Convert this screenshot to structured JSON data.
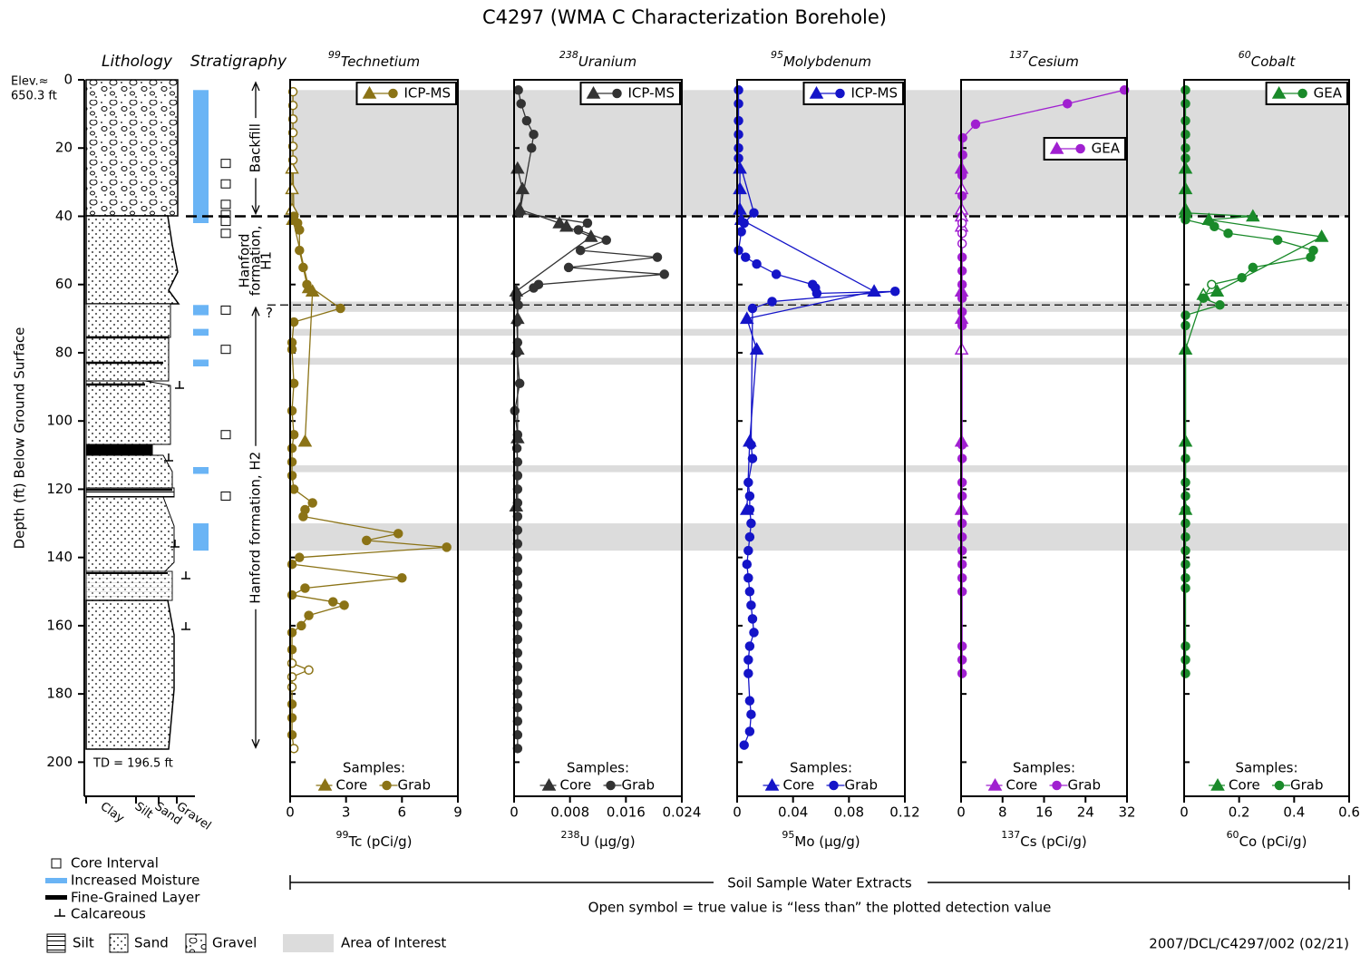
{
  "title": "C4297 (WMA C Characterization Borehole)",
  "depth_axis": {
    "label": "Depth (ft) Below Ground Surface",
    "ylim": [
      0,
      210
    ],
    "yticks": [
      0,
      20,
      40,
      60,
      80,
      100,
      120,
      140,
      160,
      180,
      200
    ]
  },
  "lithology": {
    "title": "Lithology",
    "elevation_label": "Elev.≈",
    "elevation": "650.3 ft",
    "td": "TD = 196.5 ft",
    "xlabels": [
      "Clay",
      "Silt",
      "Sand",
      "Gravel"
    ]
  },
  "stratigraphy": {
    "title": "Stratigraphy",
    "uncertain": "?",
    "units": [
      {
        "label_lines": [
          "Backfill"
        ],
        "top": 0,
        "bottom": 40
      },
      {
        "label_lines": [
          "Hanford",
          "formation,",
          "H1"
        ],
        "top": 40,
        "bottom": 66
      },
      {
        "label_lines": [
          "Hanford formation, H2"
        ],
        "top": 66,
        "bottom": 196.5
      }
    ]
  },
  "moisture_intervals": [
    [
      3,
      42
    ],
    [
      66,
      69
    ],
    [
      73,
      75
    ],
    [
      82,
      84
    ],
    [
      113.5,
      115.5
    ],
    [
      130,
      138
    ]
  ],
  "core_intervals": [
    24.5,
    30.5,
    36.5,
    39.5,
    41.5,
    45,
    67.5,
    79,
    104,
    122
  ],
  "area_of_interest": [
    [
      3,
      40
    ],
    [
      65,
      68
    ],
    [
      73,
      75
    ],
    [
      81.5,
      83.5
    ],
    [
      113,
      115
    ],
    [
      130,
      138
    ]
  ],
  "contacts": [
    {
      "depth": 40,
      "style": "bold"
    },
    {
      "depth": 66,
      "style": "thin"
    }
  ],
  "chart_data": [
    {
      "type": "scatter",
      "title_sup": "99",
      "title": "Technetium",
      "xlabel_sup": "99",
      "xlabel": "Tc (pCi/g)",
      "method": "ICP-MS",
      "legend": "upper right",
      "xlim": [
        0,
        9
      ],
      "xticks": [
        0,
        3,
        6,
        9
      ],
      "samples_label": "Samples:",
      "series": [
        {
          "name": "Core",
          "marker": "triangle",
          "color": "#8b7316",
          "y": [
            26,
            32,
            38,
            41,
            61,
            62,
            106
          ],
          "values": [
            0.1,
            0.1,
            0.1,
            0.15,
            1.0,
            1.2,
            0.8
          ],
          "open": [
            true,
            true,
            true,
            false,
            false,
            false,
            false
          ]
        },
        {
          "name": "Grab",
          "marker": "circle",
          "color": "#8b7316",
          "y": [
            3.5,
            7.5,
            11.5,
            15.5,
            19.5,
            23.5,
            40,
            42,
            44,
            50,
            55,
            60,
            67,
            71,
            77,
            79,
            89,
            97,
            104,
            108,
            112,
            116,
            120,
            124,
            126,
            128,
            133,
            135,
            137,
            140,
            142,
            146,
            149,
            151,
            153,
            154,
            157,
            160,
            162,
            167,
            171,
            173,
            175,
            178,
            183,
            187,
            192,
            196
          ],
          "values": [
            0.15,
            0.15,
            0.15,
            0.15,
            0.15,
            0.15,
            0.2,
            0.4,
            0.5,
            0.5,
            0.7,
            0.9,
            2.7,
            0.2,
            0.1,
            0.1,
            0.2,
            0.1,
            0.2,
            0.1,
            0.1,
            0.1,
            0.2,
            1.2,
            0.8,
            0.7,
            5.8,
            4.1,
            8.4,
            0.5,
            0.1,
            6.0,
            0.8,
            0.1,
            2.3,
            2.9,
            1.0,
            0.6,
            0.1,
            0.1,
            0.1,
            1.0,
            0.1,
            0.1,
            0.1,
            0.1,
            0.1,
            0.2
          ],
          "open": [
            true,
            true,
            true,
            true,
            true,
            true,
            false,
            false,
            false,
            false,
            false,
            false,
            false,
            false,
            false,
            false,
            false,
            false,
            false,
            false,
            false,
            false,
            false,
            false,
            false,
            false,
            false,
            false,
            false,
            false,
            false,
            false,
            false,
            false,
            false,
            false,
            false,
            false,
            false,
            false,
            true,
            true,
            true,
            true,
            false,
            false,
            false,
            true
          ]
        }
      ]
    },
    {
      "type": "scatter",
      "title_sup": "238",
      "title": "Uranium",
      "xlabel_sup": "238",
      "xlabel": "U (µg/g)",
      "method": "ICP-MS",
      "legend": "upper right",
      "xlim": [
        0,
        0.024
      ],
      "xticks": [
        0,
        0.008,
        0.016,
        0.024
      ],
      "samples_label": "Samples:",
      "series": [
        {
          "name": "Core",
          "marker": "triangle",
          "color": "#333333",
          "y": [
            26,
            32,
            38,
            42,
            43,
            46,
            62,
            70,
            79,
            105,
            125
          ],
          "values": [
            0.0005,
            0.0012,
            0.0008,
            0.0065,
            0.0075,
            0.011,
            0.0003,
            0.0005,
            0.0005,
            0.0005,
            0.0003
          ]
        },
        {
          "name": "Grab",
          "marker": "circle",
          "color": "#333333",
          "y": [
            3,
            7,
            12,
            16,
            20,
            39,
            42,
            44,
            47,
            50,
            52,
            55,
            57,
            60,
            61,
            64,
            66,
            71,
            77,
            80,
            89,
            97,
            104,
            108,
            112,
            116,
            120,
            124,
            128,
            132,
            136,
            140,
            144,
            148,
            152,
            156,
            160,
            164,
            168,
            172,
            176,
            180,
            184,
            188,
            192,
            196
          ],
          "values": [
            0.0006,
            0.001,
            0.0018,
            0.0028,
            0.0025,
            0.0008,
            0.0105,
            0.0092,
            0.0132,
            0.0095,
            0.0205,
            0.0078,
            0.0215,
            0.0035,
            0.0028,
            0.0003,
            0.0006,
            0.0004,
            0.0005,
            0.0004,
            0.0008,
            0.0001,
            0.0005,
            0.0004,
            0.0005,
            0.0005,
            0.0005,
            0.0005,
            0.0005,
            0.0005,
            0.0005,
            0.0005,
            0.0005,
            0.0005,
            0.0005,
            0.0005,
            0.0005,
            0.0005,
            0.0005,
            0.0005,
            0.0005,
            0.0005,
            0.0005,
            0.0005,
            0.0005,
            0.0005
          ]
        }
      ]
    },
    {
      "type": "scatter",
      "title_sup": "95",
      "title": "Molybdenum",
      "xlabel_sup": "95",
      "xlabel": "Mo (µg/g)",
      "method": "ICP-MS",
      "legend": "upper right",
      "xlim": [
        0,
        0.12
      ],
      "xticks": [
        0,
        0.04,
        0.08,
        0.12
      ],
      "samples_label": "Samples:",
      "series": [
        {
          "name": "Core",
          "marker": "triangle",
          "color": "#1414c8",
          "y": [
            26,
            32,
            38,
            41,
            62,
            70,
            79,
            106,
            126
          ],
          "values": [
            0.002,
            0.002,
            0.002,
            0.003,
            0.098,
            0.007,
            0.014,
            0.009,
            0.007
          ]
        },
        {
          "name": "Grab",
          "marker": "circle",
          "color": "#1414c8",
          "y": [
            3,
            7,
            12,
            16,
            20,
            23,
            39,
            42,
            44.5,
            50,
            52,
            54,
            57,
            60,
            61,
            62.6,
            62,
            65,
            67,
            107,
            111,
            118,
            122,
            126,
            130,
            134,
            138,
            142,
            146,
            150,
            154,
            158,
            162,
            166,
            170,
            174,
            182,
            186,
            191,
            195
          ],
          "values": [
            0.001,
            0.001,
            0.001,
            0.001,
            0.001,
            0.001,
            0.012,
            0.005,
            0.003,
            0.001,
            0.006,
            0.014,
            0.028,
            0.054,
            0.056,
            0.057,
            0.113,
            0.025,
            0.011,
            0.01,
            0.011,
            0.008,
            0.009,
            0.009,
            0.01,
            0.009,
            0.008,
            0.007,
            0.008,
            0.009,
            0.01,
            0.011,
            0.012,
            0.009,
            0.008,
            0.008,
            0.009,
            0.01,
            0.009,
            0.005
          ]
        }
      ]
    },
    {
      "type": "scatter",
      "title_sup": "137",
      "title": "Cesium",
      "xlabel_sup": "137",
      "xlabel": "Cs (pCi/g)",
      "method": "GEA",
      "legend": "right",
      "xlim": [
        0,
        32
      ],
      "xticks": [
        0,
        8,
        16,
        24,
        32
      ],
      "samples_label": "Samples:",
      "series": [
        {
          "name": "Core",
          "marker": "triangle",
          "color": "#a020d0",
          "y": [
            26,
            32,
            38,
            40,
            43,
            62,
            70,
            79,
            106,
            126
          ],
          "values": [
            0.1,
            0.1,
            0.1,
            0.1,
            0.1,
            0.1,
            0.1,
            0.1,
            0.1,
            0.1
          ],
          "open": [
            false,
            true,
            true,
            true,
            true,
            false,
            false,
            true,
            false,
            false
          ]
        },
        {
          "name": "Grab",
          "marker": "circle",
          "color": "#a020d0",
          "y": [
            3,
            7,
            13,
            17,
            22,
            28,
            34,
            42,
            45,
            48,
            52,
            56,
            60,
            64,
            68,
            72,
            107,
            111,
            118,
            122,
            130,
            134,
            138,
            142,
            146,
            150,
            166,
            170,
            174
          ],
          "values": [
            31.5,
            20.5,
            2.8,
            0.3,
            0.3,
            0.2,
            0.2,
            0.2,
            0.2,
            0.2,
            0.2,
            0.2,
            0.2,
            0.2,
            0.2,
            0.2,
            0.2,
            0.2,
            0.2,
            0.2,
            0.2,
            0.2,
            0.2,
            0.2,
            0.2,
            0.2,
            0.2,
            0.2,
            0.2
          ],
          "open": [
            false,
            false,
            false,
            false,
            false,
            false,
            false,
            true,
            true,
            true,
            false,
            false,
            false,
            false,
            false,
            false,
            false,
            false,
            false,
            false,
            false,
            false,
            false,
            false,
            false,
            false,
            false,
            false,
            false
          ]
        }
      ]
    },
    {
      "type": "scatter",
      "title_sup": "60",
      "title": "Cobalt",
      "xlabel_sup": "60",
      "xlabel": "Co (pCi/g)",
      "method": "GEA",
      "legend": "upper right",
      "xlim": [
        0,
        0.6
      ],
      "xticks": [
        0,
        0.2,
        0.4,
        0.6
      ],
      "samples_label": "Samples:",
      "series": [
        {
          "name": "Core",
          "marker": "triangle",
          "color": "#1a8a2a",
          "y": [
            26,
            32,
            38,
            39,
            40,
            41,
            46,
            62,
            63,
            79,
            106,
            126
          ],
          "values": [
            0.005,
            0.005,
            0.005,
            0.005,
            0.25,
            0.09,
            0.5,
            0.12,
            0.07,
            0.005,
            0.005,
            0.005
          ],
          "open": [
            false,
            false,
            false,
            false,
            false,
            false,
            false,
            false,
            true,
            false,
            false,
            false
          ]
        },
        {
          "name": "Grab",
          "marker": "circle",
          "color": "#1a8a2a",
          "y": [
            3,
            7,
            12,
            16,
            20,
            23,
            41,
            43,
            45,
            47,
            50,
            52,
            55,
            58,
            60,
            64,
            66,
            69,
            72,
            111,
            118,
            122,
            126,
            130,
            134,
            138,
            142,
            146,
            149,
            166,
            170,
            174
          ],
          "values": [
            0.005,
            0.005,
            0.005,
            0.005,
            0.005,
            0.005,
            0.005,
            0.11,
            0.16,
            0.34,
            0.47,
            0.46,
            0.25,
            0.21,
            0.1,
            0.07,
            0.13,
            0.005,
            0.005,
            0.005,
            0.005,
            0.005,
            0.005,
            0.005,
            0.005,
            0.005,
            0.005,
            0.005,
            0.005,
            0.005,
            0.005,
            0.005
          ],
          "open": [
            false,
            false,
            false,
            false,
            false,
            false,
            false,
            false,
            false,
            false,
            false,
            false,
            false,
            false,
            true,
            false,
            false,
            false,
            false,
            false,
            false,
            false,
            false,
            false,
            false,
            false,
            false,
            false,
            false,
            false,
            false,
            false
          ]
        }
      ]
    }
  ],
  "legend": {
    "core_interval": "Core Interval",
    "moisture": "Increased Moisture",
    "fine": "Fine-Grained Layer",
    "calcareous": "Calcareous",
    "silt": "Silt",
    "sand": "Sand",
    "gravel": "Gravel",
    "area": "Area of Interest"
  },
  "bracket": "Soil Sample Water Extracts",
  "note": "Open symbol = true value is “less than” the plotted detection value",
  "footer": "2007/DCL/C4297/002 (02/21)"
}
